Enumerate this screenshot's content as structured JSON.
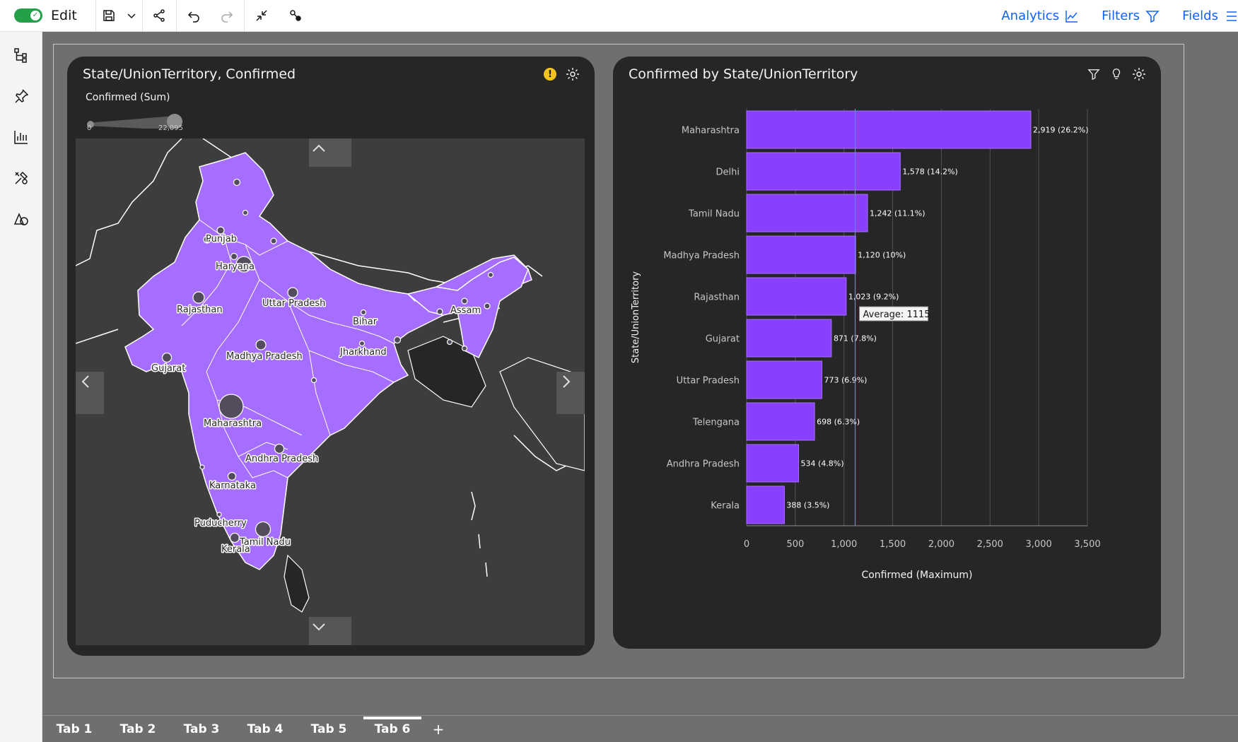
{
  "toolbar": {
    "edit_label": "Edit",
    "analytics_label": "Analytics",
    "filters_label": "Filters",
    "fields_label": "Fields"
  },
  "map_widget": {
    "title": "State/UnionTerritory, Confirmed",
    "legend_title": "Confirmed (Sum)",
    "legend_min": "0",
    "legend_max": "22,095",
    "states": [
      {
        "name": "Punjab"
      },
      {
        "name": "Haryana"
      },
      {
        "name": "Rajasthan"
      },
      {
        "name": "Uttar Pradesh"
      },
      {
        "name": "Bihar"
      },
      {
        "name": "Assam"
      },
      {
        "name": "Gujarat"
      },
      {
        "name": "Madhya Pradesh"
      },
      {
        "name": "Jharkhand"
      },
      {
        "name": "Maharashtra"
      },
      {
        "name": "Andhra Pradesh"
      },
      {
        "name": "Karnataka"
      },
      {
        "name": "Puducherry"
      },
      {
        "name": "Tamil Nadu"
      },
      {
        "name": "Kerala"
      }
    ]
  },
  "bar_widget": {
    "title": "Confirmed by State/UnionTerritory",
    "average_label": "Average: 1115",
    "colors": {
      "bar": "#8a3ffc",
      "average_line": "#08bdba",
      "grid": "#525252"
    }
  },
  "chart_data": {
    "type": "bar",
    "orientation": "horizontal",
    "title": "Confirmed by State/UnionTerritory",
    "xlabel": "Confirmed (Maximum)",
    "ylabel": "State/UnionTerritory",
    "categories": [
      "Maharashtra",
      "Delhi",
      "Tamil Nadu",
      "Madhya Pradesh",
      "Rajasthan",
      "Gujarat",
      "Uttar Pradesh",
      "Telengana",
      "Andhra Pradesh",
      "Kerala"
    ],
    "values": [
      2919,
      1578,
      1242,
      1120,
      1023,
      871,
      773,
      698,
      534,
      388
    ],
    "value_labels": [
      "2,919 (26.2%)",
      "1,578 (14.2%)",
      "1,242 (11.1%)",
      "1,120 (10%)",
      "1,023 (9.2%)",
      "871 (7.8%)",
      "773 (6.9%)",
      "698 (6.3%)",
      "534 (4.8%)",
      "388 (3.5%)"
    ],
    "xlim": [
      0,
      3500
    ],
    "xticks": [
      0,
      500,
      1000,
      1500,
      2000,
      2500,
      3000,
      3500
    ],
    "xtick_labels": [
      "0",
      "500",
      "1,000",
      "1,500",
      "2,000",
      "2,500",
      "3,000",
      "3,500"
    ],
    "average": 1115,
    "grid": true
  },
  "tabs": [
    {
      "label": "Tab 1"
    },
    {
      "label": "Tab 2"
    },
    {
      "label": "Tab 3"
    },
    {
      "label": "Tab 4"
    },
    {
      "label": "Tab 5"
    },
    {
      "label": "Tab 6",
      "active": true
    }
  ],
  "tab_add_label": "+"
}
